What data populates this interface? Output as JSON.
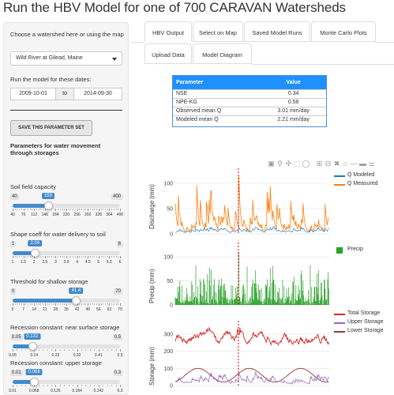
{
  "app": {
    "title": "Run the HBV Model for one of 700 CARAVAN Watersheds"
  },
  "sidebar": {
    "watershed_label": "Choose a watershed here or using the map",
    "watershed_value": "Wild River at Gilead, Maine",
    "dates_label": "Run the model for these dates:",
    "date_start": "2009-10-01",
    "date_to": "to",
    "date_end": "2014-09-30",
    "save_button": "SAVE THIS PARAMETER SET",
    "section_header": "Parameters for water movement through storages",
    "sliders": [
      {
        "label": "Soil field capacity",
        "min": "40",
        "max": "400",
        "value": "159",
        "value_num": 159,
        "lo": 40,
        "hi": 400,
        "ticks": [
          "40",
          "76",
          "112",
          "148",
          "184",
          "220",
          "256",
          "292",
          "328",
          "364",
          "400"
        ]
      },
      {
        "label": "Shape coeff for water delivery to soil",
        "min": "1",
        "max": "6",
        "value": "2.04",
        "value_num": 2.04,
        "lo": 1,
        "hi": 6,
        "ticks": [
          "1",
          "1.5",
          "2",
          "2.5",
          "3",
          "3.5",
          "4",
          "4.5",
          "5",
          "5.5",
          "6"
        ]
      },
      {
        "label": "Threshold for shallow storage",
        "min": "0",
        "max": "70",
        "value": "41.4",
        "value_num": 41.4,
        "lo": 0,
        "hi": 70,
        "ticks": [
          "0",
          "7",
          "14",
          "21",
          "28",
          "35",
          "42",
          "49",
          "56",
          "63",
          "70"
        ]
      },
      {
        "label": "Recession constant: near surface storage",
        "min": "0.05",
        "max": "0.5",
        "value": "0.132",
        "value_num": 0.132,
        "lo": 0.05,
        "hi": 0.5,
        "ticks": [
          "0.05",
          "0.14",
          "0.23",
          "0.32",
          "0.41",
          "0.5"
        ]
      },
      {
        "label": "Recession constant: upper storage",
        "min": "0.01",
        "max": "0.3",
        "value": "0.068",
        "value_num": 0.068,
        "lo": 0.01,
        "hi": 0.3,
        "ticks": [
          "0.01",
          "0.068",
          "0.126",
          "0.184",
          "0.242",
          "0.3"
        ]
      }
    ]
  },
  "tabs": [
    {
      "label": "HBV Output",
      "active": true
    },
    {
      "label": "Select on Map",
      "active": false
    },
    {
      "label": "Saved Model Runs",
      "active": false
    },
    {
      "label": "Monte Carlo Plots",
      "active": false
    },
    {
      "label": "Upload Data",
      "active": false
    },
    {
      "label": "Model Diagram",
      "active": false
    }
  ],
  "metrics_table": {
    "headers": [
      "Parameter",
      "Value"
    ],
    "rows": [
      [
        "NSE",
        "0.34"
      ],
      [
        "NPE-KG",
        "0.58"
      ],
      [
        "Observed mean Q",
        "3.01 mm/day"
      ],
      [
        "Modeled mean Q",
        "2.21 mm/day"
      ]
    ]
  },
  "modebar_icons": [
    "camera-icon",
    "zoom-icon",
    "zoom-in-icon",
    "pan-icon",
    "box-select-icon",
    "lasso-icon",
    "zoom-in-plus-icon",
    "zoom-out-minus-icon",
    "autoscale-icon",
    "reset-axes-icon",
    "spike-lines-icon",
    "hover-closest-icon",
    "hover-compare-icon"
  ],
  "colors": {
    "q_modeled": "#1f77b4",
    "q_measured": "#ff7f0e",
    "precip": "#2ca02c",
    "total_storage": "#d62728",
    "upper_storage": "#9467bd",
    "lower_storage": "#8c3a3a",
    "accent": "#428bca",
    "table_header": "#1e90ff"
  },
  "chart_data": [
    {
      "type": "line",
      "ylabel": "Discharge (mm)",
      "yticks": [
        "0",
        "50",
        "100"
      ],
      "ylim": [
        0,
        120
      ],
      "series": [
        {
          "name": "Q Modeled"
        },
        {
          "name": "Q Measured"
        }
      ]
    },
    {
      "type": "bar",
      "ylabel": "Precip (mm)",
      "yticks": [
        "0",
        "50",
        "100"
      ],
      "ylim": [
        0,
        120
      ],
      "series": [
        {
          "name": "Precip"
        }
      ]
    },
    {
      "type": "line",
      "ylabel": "Storage (mm)",
      "yticks": [
        "0",
        "100",
        "200",
        "300"
      ],
      "ylim": [
        0,
        350
      ],
      "series": [
        {
          "name": "Total Storage"
        },
        {
          "name": "Upper Storage"
        },
        {
          "name": "Lower Storage"
        }
      ]
    }
  ]
}
